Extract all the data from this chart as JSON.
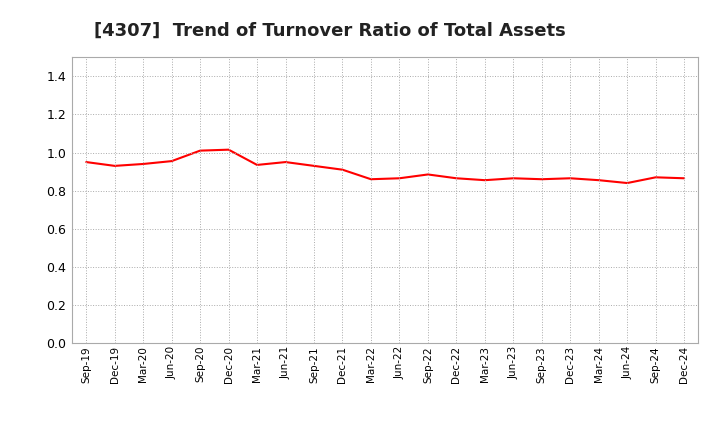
{
  "title": "[4307]  Trend of Turnover Ratio of Total Assets",
  "title_fontsize": 13,
  "line_color": "#FF0000",
  "line_width": 1.5,
  "background_color": "#FFFFFF",
  "grid_color": "#AAAAAA",
  "ylim": [
    0.0,
    1.5
  ],
  "yticks": [
    0.0,
    0.2,
    0.4,
    0.6,
    0.8,
    1.0,
    1.2,
    1.4
  ],
  "labels": [
    "Sep-19",
    "Dec-19",
    "Mar-20",
    "Jun-20",
    "Sep-20",
    "Dec-20",
    "Mar-21",
    "Jun-21",
    "Sep-21",
    "Dec-21",
    "Mar-22",
    "Jun-22",
    "Sep-22",
    "Dec-22",
    "Mar-23",
    "Jun-23",
    "Sep-23",
    "Dec-23",
    "Mar-24",
    "Jun-24",
    "Sep-24",
    "Dec-24"
  ],
  "values": [
    0.95,
    0.93,
    0.94,
    0.955,
    1.01,
    1.015,
    0.935,
    0.95,
    0.93,
    0.91,
    0.86,
    0.865,
    0.885,
    0.865,
    0.855,
    0.865,
    0.86,
    0.865,
    0.855,
    0.84,
    0.87,
    0.865
  ]
}
